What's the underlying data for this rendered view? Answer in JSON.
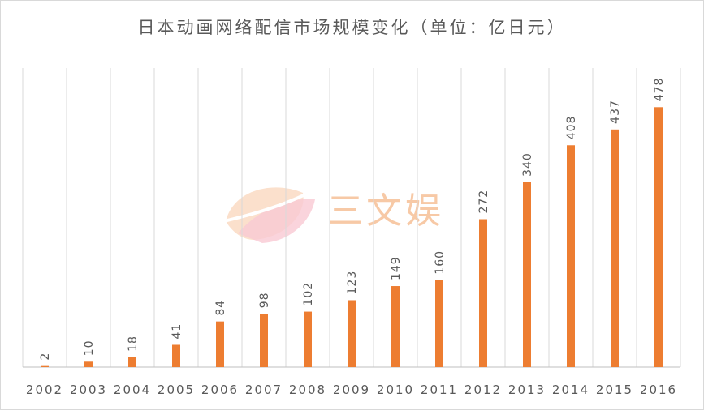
{
  "chart_data": {
    "type": "bar",
    "title": "日本动画网络配信市场规模变化（单位：亿日元）",
    "xlabel": "",
    "ylabel": "",
    "categories": [
      "2002",
      "2003",
      "2004",
      "2005",
      "2006",
      "2007",
      "2008",
      "2009",
      "2010",
      "2011",
      "2012",
      "2013",
      "2014",
      "2015",
      "2016"
    ],
    "series": [
      {
        "values": [
          2,
          10,
          18,
          41,
          84,
          98,
          102,
          123,
          149,
          160,
          272,
          340,
          408,
          437,
          478
        ]
      }
    ],
    "ylim": [
      0,
      550
    ],
    "grid": "vertical",
    "legend": "none",
    "colors": {
      "bar": "#ed7d31",
      "grid": "#d9d9d9",
      "label": "#595959",
      "axis": "#bfbfbf"
    }
  },
  "watermark": {
    "text": "三文娱"
  }
}
